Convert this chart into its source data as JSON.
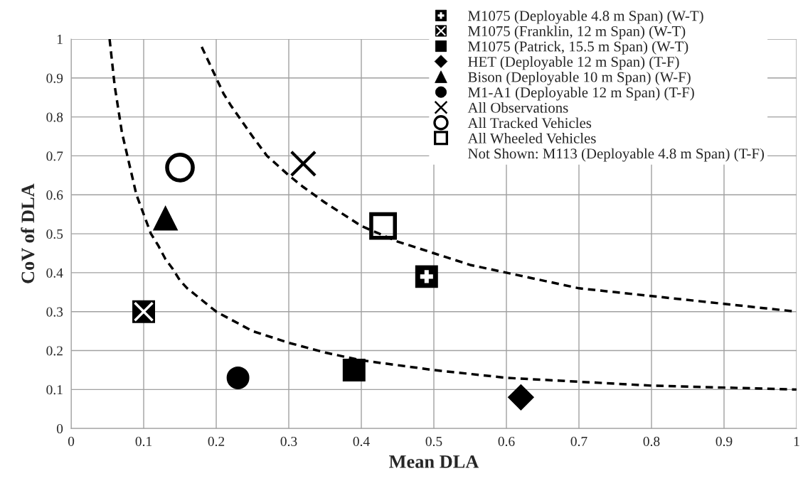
{
  "chart_data": {
    "type": "scatter",
    "xlabel": "Mean DLA",
    "ylabel": "CoV of DLA",
    "xlim": [
      0,
      1
    ],
    "ylim": [
      0,
      1
    ],
    "xticks": [
      0,
      0.1,
      0.2,
      0.3,
      0.4,
      0.5,
      0.6,
      0.7,
      0.8,
      0.9,
      1
    ],
    "yticks": [
      0,
      0.1,
      0.2,
      0.3,
      0.4,
      0.5,
      0.6,
      0.7,
      0.8,
      0.9,
      1
    ],
    "grid": true,
    "legend": "top right",
    "annotations": [
      "Not Shown: M113 (Deployable 4.8 m Span) (T-F)"
    ],
    "series": [
      {
        "name": "M1075 (Deployable 4.8 m Span) (W-T)",
        "color": "#000000",
        "marker": "square-plus",
        "x": [
          0.49
        ],
        "values": [
          0.39
        ]
      },
      {
        "name": "M1075 (Franklin, 12 m Span) (W-T)",
        "color": "#000000",
        "marker": "square-cross",
        "x": [
          0.1
        ],
        "values": [
          0.3
        ]
      },
      {
        "name": "M1075 (Patrick, 15.5 m Span) (W-T)",
        "color": "#000000",
        "marker": "square",
        "x": [
          0.39
        ],
        "values": [
          0.15
        ]
      },
      {
        "name": "HET (Deployable 12 m Span) (T-F)",
        "color": "#000000",
        "marker": "diamond",
        "x": [
          0.62
        ],
        "values": [
          0.08
        ]
      },
      {
        "name": "Bison (Deployable 10 m Span) (W-F)",
        "color": "#000000",
        "marker": "triangle",
        "x": [
          0.13
        ],
        "values": [
          0.54
        ]
      },
      {
        "name": "M1-A1 (Deployable 12 m Span) (T-F)",
        "color": "#000000",
        "marker": "circle",
        "x": [
          0.23
        ],
        "values": [
          0.13
        ]
      },
      {
        "name": "All Observations",
        "color": "#000000",
        "marker": "cross",
        "x": [
          0.32
        ],
        "values": [
          0.68
        ]
      },
      {
        "name": "All Tracked Vehicles",
        "color": "#000000",
        "marker": "circle-open",
        "x": [
          0.15
        ],
        "values": [
          0.67
        ]
      },
      {
        "name": "All Wheeled Vehicles",
        "color": "#000000",
        "marker": "square-open",
        "x": [
          0.43
        ],
        "values": [
          0.52
        ]
      },
      {
        "type": "line",
        "color": "#000000",
        "marker": "none",
        "line_style": "dashed",
        "x": [
          0.053,
          0.06,
          0.07,
          0.08,
          0.09,
          0.1,
          0.11,
          0.12,
          0.13,
          0.14,
          0.15,
          0.16,
          0.18,
          0.2,
          0.22,
          0.25,
          0.3,
          0.35,
          0.4,
          0.5,
          0.6,
          0.7,
          0.8,
          0.9,
          1.0
        ],
        "values": [
          1.0,
          0.88,
          0.76,
          0.68,
          0.6,
          0.55,
          0.5,
          0.47,
          0.435,
          0.41,
          0.38,
          0.36,
          0.33,
          0.3,
          0.28,
          0.25,
          0.22,
          0.195,
          0.175,
          0.15,
          0.13,
          0.12,
          0.11,
          0.105,
          0.1
        ]
      },
      {
        "type": "line",
        "color": "#000000",
        "marker": "none",
        "line_style": "dashed",
        "x": [
          0.18,
          0.19,
          0.2,
          0.21,
          0.22,
          0.25,
          0.27,
          0.3,
          0.32,
          0.35,
          0.4,
          0.45,
          0.5,
          0.55,
          0.6,
          0.65,
          0.7,
          0.75,
          0.8,
          0.9,
          1.0
        ],
        "values": [
          0.98,
          0.94,
          0.9,
          0.86,
          0.83,
          0.75,
          0.7,
          0.65,
          0.62,
          0.58,
          0.52,
          0.48,
          0.45,
          0.42,
          0.4,
          0.38,
          0.36,
          0.35,
          0.34,
          0.32,
          0.3
        ]
      }
    ]
  }
}
